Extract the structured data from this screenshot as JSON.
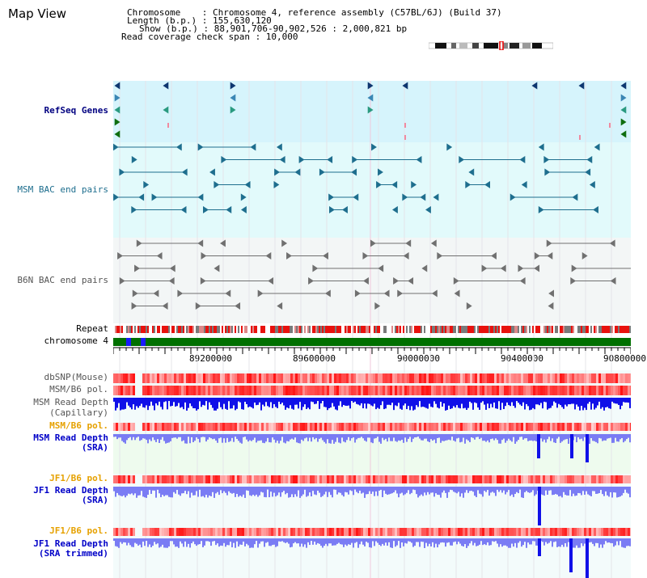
{
  "page": {
    "title": "Map View"
  },
  "info": {
    "chromosome": "Chromosome    : Chromosome 4, reference assembly (C57BL/6J) (Build 37)",
    "length": "Length (b.p.) : 155,630,120",
    "show": "Show (b.p.) : 88,901,706-90,902,526 : 2,000,821 bp",
    "coverage": "Read coverage check span : 10,000"
  },
  "axis": {
    "ticks": [
      "89200000",
      "89600000",
      "90000000",
      "90400000",
      "90800000"
    ]
  },
  "tracks": {
    "refseq": "RefSeq Genes",
    "msm_bac": "MSM BAC end pairs",
    "b6n_bac": "B6N BAC end pairs",
    "repeat": "Repeat",
    "chromosome": "chromosome 4",
    "dbsnp": "dbSNP(Mouse)",
    "msm_pol": "MSM/B6 pol.",
    "msm_depth_cap": "MSM Read Depth",
    "msm_depth_cap_sub": "(Capillary)",
    "msm_pol_sra": "MSM/B6 pol.",
    "msm_depth_sra": "MSM Read Depth",
    "msm_depth_sra_sub": "(SRA)",
    "jf1_pol": "JF1/B6 pol.",
    "jf1_depth": "JF1 Read Depth",
    "jf1_depth_sub": "(SRA)",
    "jf1_pol_trim": "JF1/B6 pol.",
    "jf1_depth_trim": "JF1 Read Depth",
    "jf1_depth_trim_sub": "(SRA trimmed)"
  },
  "colors": {
    "refseq_bg": "#d6f4fc",
    "msm_bg": "#e2fafb",
    "b6n_bg": "#f3f6f6",
    "teal": "#1e6e8e",
    "gene_navy": "#0e3770",
    "gene_green": "#0f6e0f",
    "chrom_green": "#007000",
    "repeat_red": "#e8120e",
    "depth_blue": "#1010e8",
    "depth_light": "#7a7cf4"
  }
}
